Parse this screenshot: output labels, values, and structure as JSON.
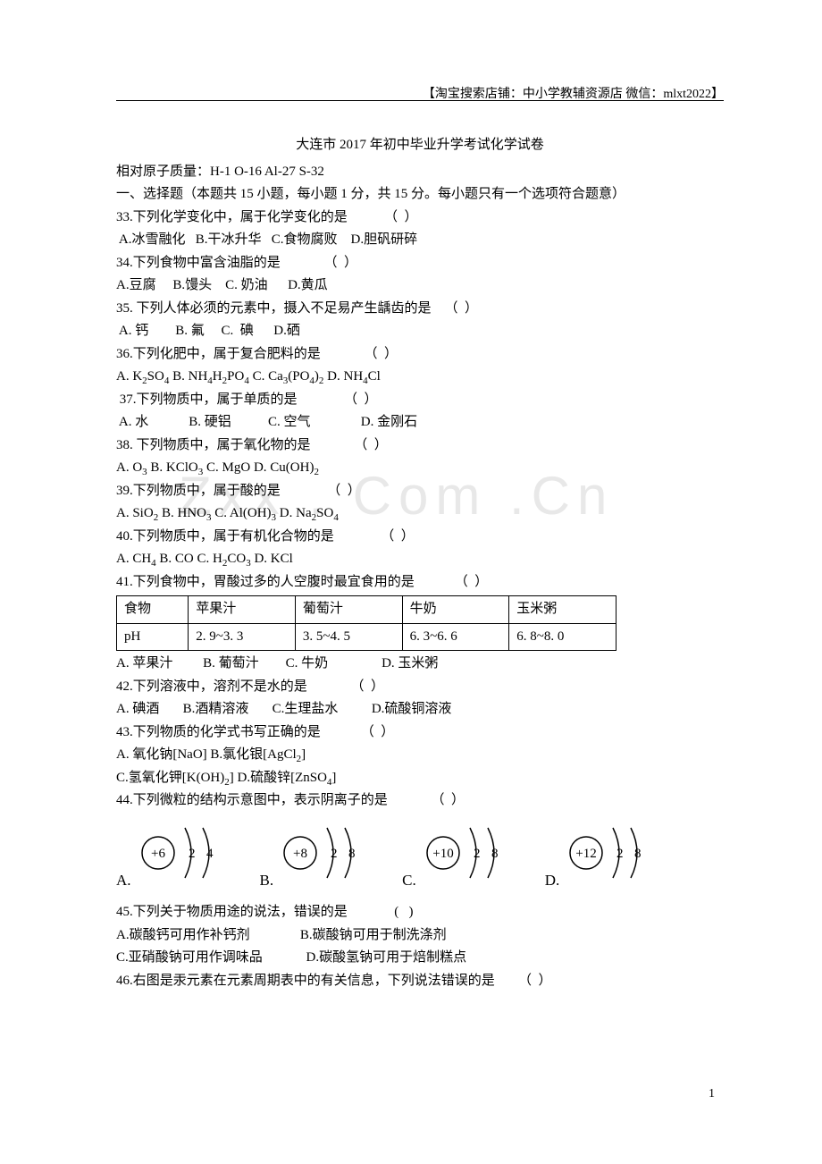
{
  "header": "【淘宝搜索店铺：中小学教辅资源店  微信：mlxt2022】",
  "watermark": "Zxx . Com .Cn",
  "title": "大连市 2017 年初中毕业升学考试化学试卷",
  "masses": "相对原子质量：H-1   O-16    Al-27    S-32",
  "section1": "一、选择题（本题共 15 小题，每小题 1 分，共 15 分。每小题只有一个选项符合题意）",
  "q33": "33.下列化学变化中，属于化学变化的是           （  ）",
  "q33opts": " A.冰雪融化   B.干冰升华   C.食物腐败    D.胆矾研碎",
  "q34": "34.下列食物中富含油脂的是             （  ）",
  "q34opts": "A.豆腐     B.馒头    C. 奶油      D.黄瓜",
  "q35": "35. 下列人体必须的元素中，摄入不足易产生龋齿的是    （  ）",
  "q35opts": " A. 钙        B. 氟     C.  碘      D.硒",
  "q36": "36.下列化肥中，属于复合肥料的是             （  ）",
  "q36a": " A. K",
  "q36a2": "SO",
  "q36a3": "         B. NH",
  "q36b2": "H",
  "q36b3": "PO",
  "q36b4": "      C. Ca",
  "q36c2": "(PO",
  "q36c3": ")",
  "q36c4": "          D. NH",
  "q36d2": "Cl",
  "q37": " 37.下列物质中，属于单质的是              （  ）",
  "q37opts": " A. 水            B. 硬铝           C. 空气               D. 金刚石",
  "q38": "38. 下列物质中，属于氧化物的是             （  ）",
  "q38a": " A. O",
  "q38b": "             B. KClO",
  "q38c": "           C. MgO                D. Cu(OH)",
  "q39": "39.下列物质中，属于酸的是              （  ）",
  "q39a": "A. SiO",
  "q39b": "            B. HNO",
  "q39c": "            C. Al(OH)",
  "q39d": "           D. Na",
  "q39e": "SO",
  "q40": "40.下列物质中，属于有机化合物的是              （  ）",
  "q40a": "A. CH",
  "q40b": "             B. CO              C. H",
  "q40c": "CO",
  "q40d": "              D. KCl",
  "q41": "41.下列食物中，胃酸过多的人空腹时最宜食用的是            （  ）",
  "table": {
    "row1": [
      "食物",
      "苹果汁",
      "葡萄汁",
      "牛奶",
      "玉米粥"
    ],
    "row2": [
      "pH",
      "2. 9~3. 3",
      "3. 5~4. 5",
      "6. 3~6. 6",
      "6. 8~8. 0"
    ]
  },
  "q41opts": "A. 苹果汁         B. 葡萄汁        C. 牛奶                D. 玉米粥",
  "q42": "42.下列溶液中，溶剂不是水的是             （  ）",
  "q42opts": "A. 碘酒       B.酒精溶液       C.生理盐水          D.硫酸铜溶液",
  "q43": "43.下列物质的化学式书写正确的是            （  ）",
  "q43a": "A. 氧化钠[NaO]     B.氯化银[AgCl",
  "q43a2": "]",
  "q43b": "C.氢氧化钾[K(OH)",
  "q43b2": "]     D.硫酸锌[ZnSO",
  "q43b3": "]",
  "q44": "44.下列微粒的结构示意图中，表示阴离子的是             （  ）",
  "atoms": [
    {
      "label": "A.",
      "core": "+6",
      "shells": [
        "2",
        "4"
      ]
    },
    {
      "label": "B.",
      "core": "+8",
      "shells": [
        "2",
        "8"
      ]
    },
    {
      "label": "C.",
      "core": "+10",
      "shells": [
        "2",
        "8"
      ]
    },
    {
      "label": "D.",
      "core": "+12",
      "shells": [
        "2",
        "8"
      ]
    }
  ],
  "q45": "45.下列关于物质用途的说法，错误的是              (   )",
  "q45a": "A.碳酸钙可用作补钙剂               B.碳酸钠可用于制洗涤剂",
  "q45b": "C.亚硝酸钠可用作调味品             D.碳酸氢钠可用于焙制糕点",
  "q46": "46.右图是汞元素在元素周期表中的有关信息，下列说法错误的是       （  ）",
  "pageNum": "1"
}
